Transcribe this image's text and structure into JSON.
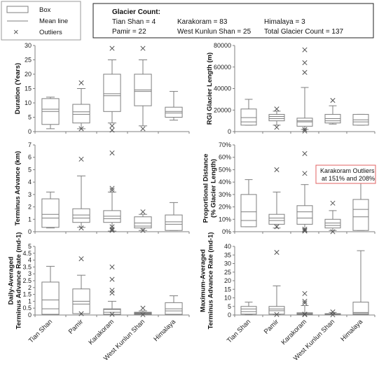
{
  "legend": {
    "box_label": "Box",
    "mean_label": "Mean line",
    "outlier_label": "Outliers",
    "outlier_symbol": "×"
  },
  "glacier_count": {
    "title": "Glacier Count:",
    "items": [
      "Tian Shan = 4",
      "Karakoram = 83",
      "Himalaya = 3",
      "Pamir = 22",
      "West Kunlun Shan = 25",
      "Total Glacier Count = 137"
    ]
  },
  "colors": {
    "box_stroke": "#7f7f7f",
    "axis": "#808080",
    "note_border": "#e06060"
  },
  "categories": [
    "Tian Shan",
    "Pamir",
    "Karakoram",
    "West Kunlun Shan",
    "Himalaya"
  ],
  "note_text": [
    "Karakoram Outliers",
    "at 151% and 208%"
  ],
  "chart_data": [
    {
      "type": "box",
      "ylabel": "Duration (Years)",
      "ylim": [
        0,
        30
      ],
      "yticks": [
        "0",
        "5",
        "10",
        "15",
        "20",
        "25",
        "30"
      ],
      "boxes": [
        {
          "min": 1,
          "q1": 2.5,
          "median": 7,
          "mean": 7.8,
          "q3": 11.5,
          "max": 12,
          "outliers": []
        },
        {
          "min": 1,
          "q1": 3,
          "median": 6,
          "mean": 6.9,
          "q3": 9.5,
          "max": 15,
          "outliers": [
            17,
            1
          ]
        },
        {
          "min": 3,
          "q1": 7,
          "median": 12.5,
          "mean": 13.2,
          "q3": 20,
          "max": 25,
          "outliers": [
            29,
            2,
            0.5
          ]
        },
        {
          "min": 2,
          "q1": 9,
          "median": 14,
          "mean": 14.5,
          "q3": 20,
          "max": 25,
          "outliers": [
            29,
            1
          ]
        },
        {
          "min": 4,
          "q1": 5,
          "median": 6.5,
          "mean": 7,
          "q3": 8.5,
          "max": 14,
          "outliers": []
        }
      ]
    },
    {
      "type": "box",
      "ylabel": "RGI Glacier Length (m)",
      "ylim": [
        0,
        80000
      ],
      "yticks": [
        "0",
        "20000",
        "40000",
        "60000",
        "80000"
      ],
      "boxes": [
        {
          "min": 6000,
          "q1": 6000,
          "median": 9000,
          "mean": 13000,
          "q3": 21000,
          "max": 30000,
          "outliers": []
        },
        {
          "min": 6000,
          "q1": 10000,
          "median": 12000,
          "mean": 14000,
          "q3": 16000,
          "max": 19000,
          "outliers": [
            21000,
            4000
          ]
        },
        {
          "min": 2000,
          "q1": 5000,
          "median": 9000,
          "mean": 10000,
          "q3": 12500,
          "max": 41000,
          "outliers": [
            76000,
            64000,
            55000,
            2000,
            500
          ]
        },
        {
          "min": 7000,
          "q1": 8000,
          "median": 10000,
          "mean": 12000,
          "q3": 16000,
          "max": 24000,
          "outliers": [
            29000
          ]
        },
        {
          "min": 6000,
          "q1": 6000,
          "median": 9000,
          "mean": 11000,
          "q3": 16000,
          "max": 16000,
          "outliers": []
        }
      ]
    },
    {
      "type": "box",
      "ylabel": "Terminus Advance (km)",
      "ylim": [
        0,
        7
      ],
      "yticks": [
        "0",
        "1",
        "2",
        "3",
        "4",
        "5",
        "6",
        "7"
      ],
      "boxes": [
        {
          "min": 0.3,
          "q1": 0.35,
          "median": 1.1,
          "mean": 1.4,
          "q3": 2.65,
          "max": 3.2,
          "outliers": []
        },
        {
          "min": 0.35,
          "q1": 0.75,
          "median": 1.1,
          "mean": 1.35,
          "q3": 1.85,
          "max": 4.5,
          "outliers": [
            5.85,
            0.3
          ]
        },
        {
          "min": 0.05,
          "q1": 0.75,
          "median": 1.05,
          "mean": 1.25,
          "q3": 1.7,
          "max": 3.2,
          "outliers": [
            6.35,
            3.5,
            3.35,
            0.4,
            0.2,
            0.1
          ]
        },
        {
          "min": 0.1,
          "q1": 0.3,
          "median": 0.45,
          "mean": 0.7,
          "q3": 1.2,
          "max": 1.4,
          "outliers": [
            1.6,
            0.1
          ]
        },
        {
          "min": 0.1,
          "q1": 0.1,
          "median": 0.6,
          "mean": 0.8,
          "q3": 1.35,
          "max": 2.35,
          "outliers": []
        }
      ]
    },
    {
      "type": "box",
      "ylabel": "Proportional Distance (% Glacier Length)",
      "ylim": [
        0,
        70
      ],
      "yticks": [
        "0%",
        "10%",
        "20%",
        "30%",
        "40%",
        "50%",
        "60%",
        "70%"
      ],
      "boxes": [
        {
          "min": 4,
          "q1": 4,
          "median": 9,
          "mean": 16,
          "q3": 30,
          "max": 42,
          "outliers": []
        },
        {
          "min": 3,
          "q1": 6,
          "median": 9,
          "mean": 11,
          "q3": 14,
          "max": 32,
          "outliers": [
            50,
            4
          ]
        },
        {
          "min": 0,
          "q1": 6,
          "median": 11,
          "mean": 16,
          "q3": 21,
          "max": 38,
          "outliers": [
            63,
            47,
            2,
            1,
            0.5
          ]
        },
        {
          "min": 1,
          "q1": 3,
          "median": 5,
          "mean": 7,
          "q3": 10,
          "max": 17,
          "outliers": [
            23,
            0
          ]
        },
        {
          "min": 1,
          "q1": 1,
          "median": 12,
          "mean": 18,
          "q3": 26,
          "max": 45,
          "outliers": []
        }
      ]
    },
    {
      "type": "box",
      "ylabel": "Daily-Averaged Terminus Advance Rate (md-1)",
      "ylim": [
        0,
        5
      ],
      "yticks": [
        "0",
        "0.5",
        "1",
        "1.5",
        "2",
        "2.5",
        "3",
        "3.5",
        "4",
        "4.5",
        "5"
      ],
      "boxes": [
        {
          "min": 0.05,
          "q1": 0.05,
          "median": 0.45,
          "mean": 1.1,
          "q3": 2.4,
          "max": 3.55,
          "outliers": []
        },
        {
          "min": 0.1,
          "q1": 0.1,
          "median": 0.8,
          "mean": 1.0,
          "q3": 1.9,
          "max": 2.9,
          "outliers": [
            4.1,
            0.1
          ]
        },
        {
          "min": 0.02,
          "q1": 0.05,
          "median": 0.2,
          "mean": 0.4,
          "q3": 0.45,
          "max": 1.0,
          "outliers": [
            3.5,
            2.6,
            1.8,
            1.6,
            0.05
          ]
        },
        {
          "min": 0.02,
          "q1": 0.05,
          "median": 0.1,
          "mean": 0.15,
          "q3": 0.2,
          "max": 0.3,
          "outliers": [
            0.5,
            0.02
          ]
        },
        {
          "min": 0.05,
          "q1": 0.05,
          "median": 0.3,
          "mean": 0.45,
          "q3": 0.9,
          "max": 1.4,
          "outliers": []
        }
      ]
    },
    {
      "type": "box",
      "ylabel": "Maximum-Averaged Terminus Advance Rate (md-1)",
      "ylim": [
        0,
        40
      ],
      "yticks": [
        "0",
        "5",
        "10",
        "15",
        "20",
        "25",
        "30",
        "35",
        "40"
      ],
      "boxes": [
        {
          "min": 0.2,
          "q1": 0.5,
          "median": 2,
          "mean": 3.5,
          "q3": 5,
          "max": 7.5,
          "outliers": []
        },
        {
          "min": 0.2,
          "q1": 0.5,
          "median": 2.5,
          "mean": 3.5,
          "q3": 5,
          "max": 17,
          "outliers": [
            36.5,
            0.3
          ]
        },
        {
          "min": 0.05,
          "q1": 0.2,
          "median": 0.5,
          "mean": 0.8,
          "q3": 1.3,
          "max": 5.5,
          "outliers": [
            12.5,
            8,
            7,
            0.5,
            0.2
          ]
        },
        {
          "min": 0.05,
          "q1": 0.1,
          "median": 0.2,
          "mean": 0.4,
          "q3": 0.8,
          "max": 1.5,
          "outliers": [
            1.8,
            0.1
          ]
        },
        {
          "min": 0.2,
          "q1": 0.3,
          "median": 0.8,
          "mean": 1.5,
          "q3": 7.5,
          "max": 37.5,
          "outliers": []
        }
      ]
    }
  ]
}
